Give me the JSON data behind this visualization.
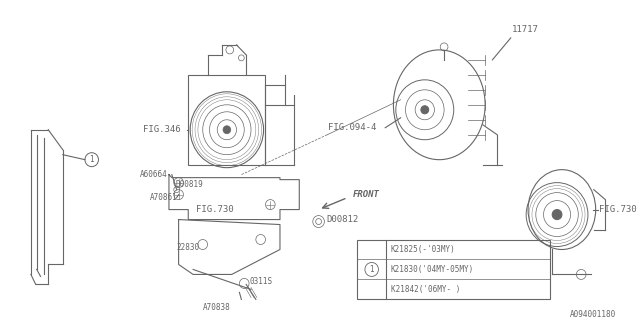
{
  "bg_color": "#ffffff",
  "line_color": "#666666",
  "fig_width": 6.4,
  "fig_height": 3.2,
  "dpi": 100,
  "watermark": "A094001180",
  "table_rows": [
    {
      "circle": false,
      "text": "K21825(-'03MY)"
    },
    {
      "circle": true,
      "text": "K21830('04MY-05MY)"
    },
    {
      "circle": false,
      "text": "K21842('06MY- )"
    }
  ]
}
